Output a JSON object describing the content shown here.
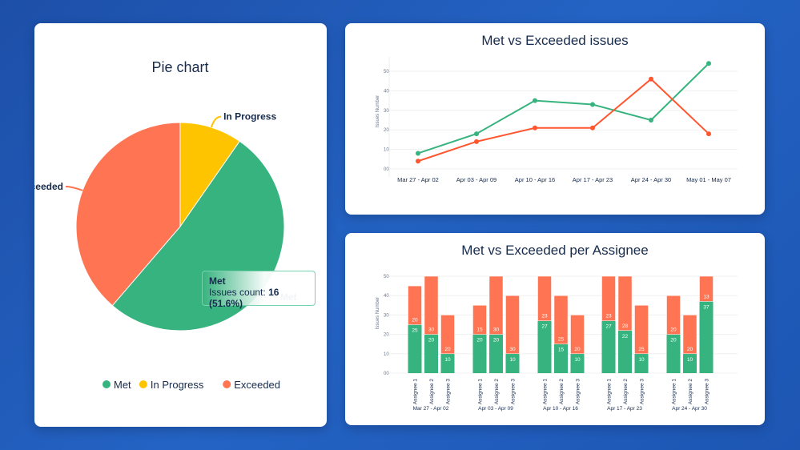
{
  "colors": {
    "met": "#36b37e",
    "in_progress": "#ffc400",
    "exceeded": "#ff7452",
    "exceeded_line": "#ff5630"
  },
  "chart_data": [
    {
      "type": "pie",
      "title": "Pie chart",
      "slices": [
        {
          "name": "In Progress",
          "value": 3
        },
        {
          "name": "Met",
          "value": 16
        },
        {
          "name": "Exceeded",
          "value": 12
        }
      ],
      "legend": [
        "Met",
        "In Progress",
        "Exceeded"
      ],
      "legend_position": "bottom",
      "tooltip": {
        "title": "Met",
        "label": "Issues count:",
        "value": "16 (51.6%)"
      }
    },
    {
      "type": "line",
      "title": "Met vs Exceeded issues",
      "ylabel": "Issues Number",
      "ylim": [
        0,
        50
      ],
      "yticks": [
        "00",
        "10",
        "20",
        "30",
        "40",
        "50"
      ],
      "categories": [
        "Mar 27 - Apr 02",
        "Apr 03 - Apr 09",
        "Apr 10 - Apr 16",
        "Apr 17 - Apr 23",
        "Apr 24 - Apr 30",
        "May 01 - May 07"
      ],
      "series": [
        {
          "key": "met",
          "values": [
            8,
            18,
            35,
            33,
            25,
            54
          ]
        },
        {
          "key": "exceeded",
          "values": [
            4,
            14,
            21,
            21,
            46,
            18
          ]
        }
      ]
    },
    {
      "type": "bar",
      "stacked": true,
      "title": "Met vs Exceeded per Assignee",
      "ylabel": "Issues Number",
      "ylim": [
        0,
        50
      ],
      "yticks": [
        "00",
        "10",
        "20",
        "30",
        "40",
        "50"
      ],
      "groups": [
        {
          "label": "Mar 27 - Apr 02",
          "bars": [
            {
              "name": "Assignee 1",
              "met": 25,
              "exceeded": 20
            },
            {
              "name": "Assignee 2",
              "met": 20,
              "exceeded": 30
            },
            {
              "name": "Assignee 3",
              "met": 10,
              "exceeded": 20
            }
          ]
        },
        {
          "label": "Apr 03 - Apr 09",
          "bars": [
            {
              "name": "Assignee 1",
              "met": 20,
              "exceeded": 15
            },
            {
              "name": "Assignee 2",
              "met": 20,
              "exceeded": 30
            },
            {
              "name": "Assignee 3",
              "met": 10,
              "exceeded": 30
            }
          ]
        },
        {
          "label": "Apr 10 - Apr 16",
          "bars": [
            {
              "name": "Assignee 1",
              "met": 27,
              "exceeded": 23
            },
            {
              "name": "Assignee 2",
              "met": 15,
              "exceeded": 25
            },
            {
              "name": "Assignee 3",
              "met": 10,
              "exceeded": 20
            }
          ]
        },
        {
          "label": "Apr 17 - Apr 23",
          "bars": [
            {
              "name": "Assignee 1",
              "met": 27,
              "exceeded": 23
            },
            {
              "name": "Assignee 2",
              "met": 22,
              "exceeded": 28
            },
            {
              "name": "Assignee 3",
              "met": 10,
              "exceeded": 25
            }
          ]
        },
        {
          "label": "Apr 24 - Apr 30",
          "bars": [
            {
              "name": "Assignee 1",
              "met": 20,
              "exceeded": 20
            },
            {
              "name": "Assignee 2",
              "met": 10,
              "exceeded": 20
            },
            {
              "name": "Assignee 3",
              "met": 37,
              "exceeded": 13
            }
          ]
        }
      ]
    }
  ]
}
